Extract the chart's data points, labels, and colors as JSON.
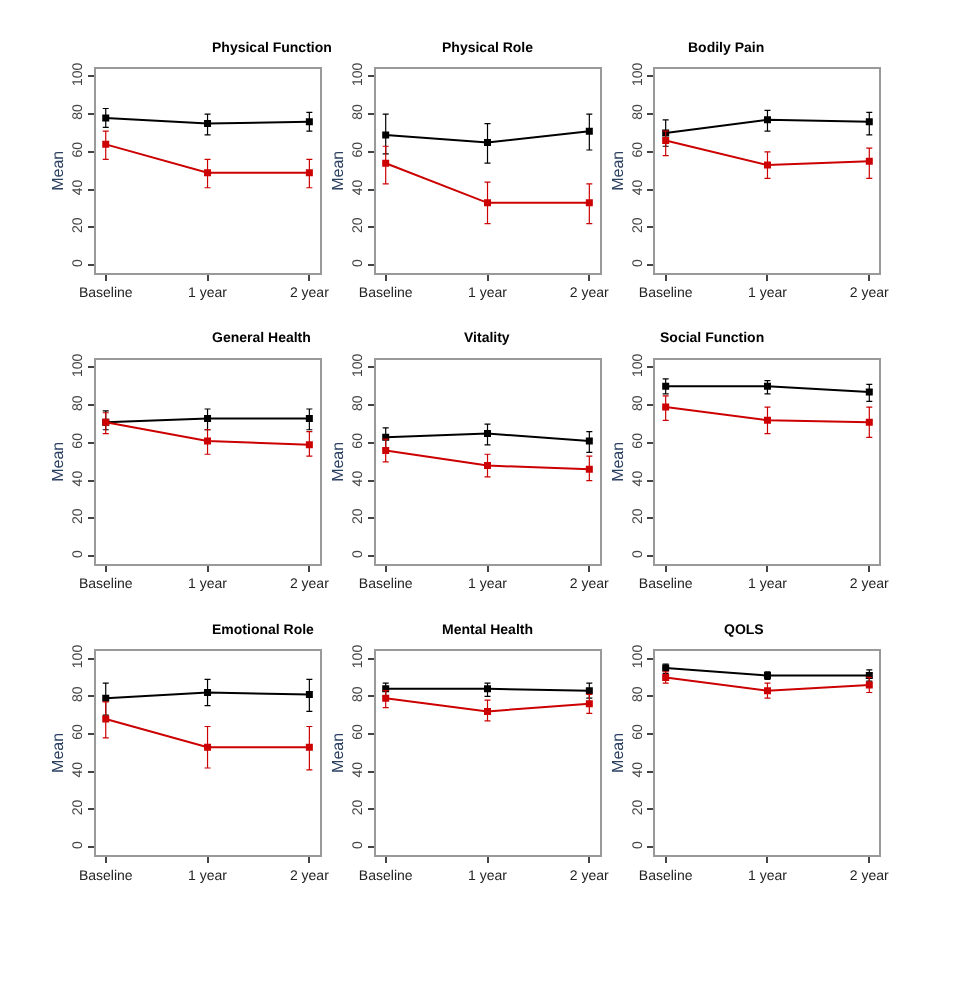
{
  "chart_data": [
    {
      "type": "line",
      "title": "Physical Function",
      "ylabel": "Mean",
      "categories": [
        "Baseline",
        "1 year",
        "2 year"
      ],
      "ylim": [
        -4,
        104
      ],
      "yticks": [
        0,
        20,
        40,
        60,
        80,
        100
      ],
      "marker": "square",
      "series": [
        {
          "color": "#000000",
          "values": [
            78,
            75,
            76
          ],
          "errors": [
            [
              73,
              83
            ],
            [
              69,
              80
            ],
            [
              71,
              81
            ]
          ]
        },
        {
          "color": "#cc0000",
          "values": [
            64,
            49,
            49
          ],
          "errors": [
            [
              56,
              71
            ],
            [
              41,
              56
            ],
            [
              41,
              56
            ]
          ]
        }
      ]
    },
    {
      "type": "line",
      "title": "Physical Role",
      "ylabel": "Mean",
      "categories": [
        "Baseline",
        "1 year",
        "2 year"
      ],
      "ylim": [
        -4,
        104
      ],
      "yticks": [
        0,
        20,
        40,
        60,
        80,
        100
      ],
      "marker": "square",
      "series": [
        {
          "color": "#000000",
          "values": [
            69,
            65,
            71
          ],
          "errors": [
            [
              59,
              80
            ],
            [
              54,
              75
            ],
            [
              61,
              80
            ]
          ]
        },
        {
          "color": "#cc0000",
          "values": [
            54,
            33,
            33
          ],
          "errors": [
            [
              43,
              63
            ],
            [
              22,
              44
            ],
            [
              22,
              43
            ]
          ]
        }
      ]
    },
    {
      "type": "line",
      "title": "Bodily Pain",
      "ylabel": "Mean",
      "categories": [
        "Baseline",
        "1 year",
        "2 year"
      ],
      "ylim": [
        -4,
        104
      ],
      "yticks": [
        0,
        20,
        40,
        60,
        80,
        100
      ],
      "marker": "square",
      "series": [
        {
          "color": "#000000",
          "values": [
            70,
            77,
            76
          ],
          "errors": [
            [
              63,
              77
            ],
            [
              71,
              82
            ],
            [
              69,
              81
            ]
          ]
        },
        {
          "color": "#cc0000",
          "values": [
            66,
            53,
            55
          ],
          "errors": [
            [
              58,
              71
            ],
            [
              46,
              60
            ],
            [
              46,
              62
            ]
          ]
        }
      ]
    },
    {
      "type": "line",
      "title": "General Health",
      "ylabel": "Mean",
      "categories": [
        "Baseline",
        "1 year",
        "2 year"
      ],
      "ylim": [
        -4,
        104
      ],
      "yticks": [
        0,
        20,
        40,
        60,
        80,
        100
      ],
      "marker": "square",
      "series": [
        {
          "color": "#000000",
          "values": [
            71,
            73,
            73
          ],
          "errors": [
            [
              67,
              77
            ],
            [
              67,
              78
            ],
            [
              67,
              78
            ]
          ]
        },
        {
          "color": "#cc0000",
          "values": [
            71,
            61,
            59
          ],
          "errors": [
            [
              65,
              76
            ],
            [
              54,
              67
            ],
            [
              53,
              66
            ]
          ]
        }
      ]
    },
    {
      "type": "line",
      "title": "Vitality",
      "ylabel": "Mean",
      "categories": [
        "Baseline",
        "1 year",
        "2 year"
      ],
      "ylim": [
        -4,
        104
      ],
      "yticks": [
        0,
        20,
        40,
        60,
        80,
        100
      ],
      "marker": "square",
      "series": [
        {
          "color": "#000000",
          "values": [
            63,
            65,
            61
          ],
          "errors": [
            [
              57,
              68
            ],
            [
              59,
              70
            ],
            [
              55,
              66
            ]
          ]
        },
        {
          "color": "#cc0000",
          "values": [
            56,
            48,
            46
          ],
          "errors": [
            [
              50,
              62
            ],
            [
              42,
              54
            ],
            [
              40,
              53
            ]
          ]
        }
      ]
    },
    {
      "type": "line",
      "title": "Social Function",
      "ylabel": "Mean",
      "categories": [
        "Baseline",
        "1 year",
        "2 year"
      ],
      "ylim": [
        -4,
        104
      ],
      "yticks": [
        0,
        20,
        40,
        60,
        80,
        100
      ],
      "marker": "square",
      "series": [
        {
          "color": "#000000",
          "values": [
            90,
            90,
            87
          ],
          "errors": [
            [
              86,
              94
            ],
            [
              86,
              93
            ],
            [
              82,
              91
            ]
          ]
        },
        {
          "color": "#cc0000",
          "values": [
            79,
            72,
            71
          ],
          "errors": [
            [
              72,
              85
            ],
            [
              65,
              79
            ],
            [
              63,
              79
            ]
          ]
        }
      ]
    },
    {
      "type": "line",
      "title": "Emotional Role",
      "ylabel": "Mean",
      "categories": [
        "Baseline",
        "1 year",
        "2 year"
      ],
      "ylim": [
        -4,
        104
      ],
      "yticks": [
        0,
        20,
        40,
        60,
        80,
        100
      ],
      "marker": "square",
      "series": [
        {
          "color": "#000000",
          "values": [
            79,
            82,
            81
          ],
          "errors": [
            [
              70,
              87
            ],
            [
              75,
              89
            ],
            [
              72,
              89
            ]
          ]
        },
        {
          "color": "#cc0000",
          "values": [
            68,
            53,
            53
          ],
          "errors": [
            [
              58,
              77
            ],
            [
              42,
              64
            ],
            [
              41,
              64
            ]
          ]
        }
      ]
    },
    {
      "type": "line",
      "title": "Mental Health",
      "ylabel": "Mean",
      "categories": [
        "Baseline",
        "1 year",
        "2 year"
      ],
      "ylim": [
        -4,
        104
      ],
      "yticks": [
        0,
        20,
        40,
        60,
        80,
        100
      ],
      "marker": "square",
      "series": [
        {
          "color": "#000000",
          "values": [
            84,
            84,
            83
          ],
          "errors": [
            [
              80,
              87
            ],
            [
              80,
              87
            ],
            [
              79,
              87
            ]
          ]
        },
        {
          "color": "#cc0000",
          "values": [
            79,
            72,
            76
          ],
          "errors": [
            [
              74,
              83
            ],
            [
              67,
              78
            ],
            [
              71,
              81
            ]
          ]
        }
      ]
    },
    {
      "type": "line",
      "title": "QOLS",
      "ylabel": "Mean",
      "categories": [
        "Baseline",
        "1 year",
        "2 year"
      ],
      "ylim": [
        -4,
        104
      ],
      "yticks": [
        0,
        20,
        40,
        60,
        80,
        100
      ],
      "marker": "square",
      "series": [
        {
          "color": "#000000",
          "values": [
            95,
            91,
            91
          ],
          "errors": [
            [
              92,
              97
            ],
            [
              89,
              93
            ],
            [
              88,
              94
            ]
          ]
        },
        {
          "color": "#cc0000",
          "values": [
            90,
            83,
            86
          ],
          "errors": [
            [
              87,
              93
            ],
            [
              79,
              87
            ],
            [
              82,
              90
            ]
          ]
        }
      ]
    }
  ]
}
